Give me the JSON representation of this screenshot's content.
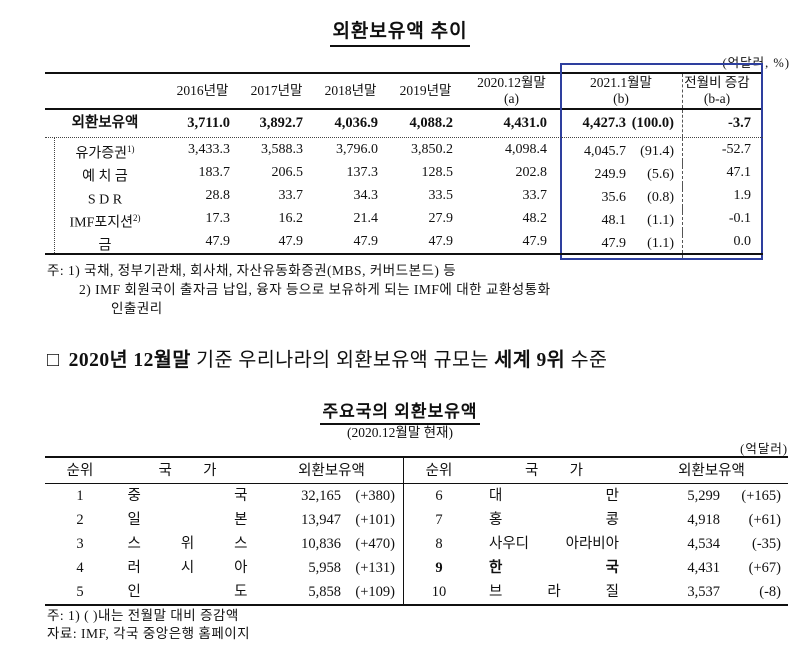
{
  "colors": {
    "highlight_box_border": "#2e3f9e",
    "text": "#101010"
  },
  "table1": {
    "title": "외환보유액 추이",
    "unit_note": "(억달러, %)",
    "year_headers": [
      "2016년말",
      "2017년말",
      "2018년말",
      "2019년말"
    ],
    "col_a": {
      "line1": "2020.12월말",
      "line2": "(a)"
    },
    "col_b": {
      "line1": "2021.1월말",
      "line2": "(b)"
    },
    "col_diff": {
      "line1": "전월비 증감",
      "line2": "(b-a)"
    },
    "total_row": {
      "label": "외환보유액",
      "values": [
        "3,711.0",
        "3,892.7",
        "4,036.9",
        "4,088.2",
        "4,431.0"
      ],
      "b_value": "4,427.3",
      "b_share": "(100.0)",
      "diff": "-3.7"
    },
    "rows": [
      {
        "label": "유가증권",
        "sup": "1)",
        "values": [
          "3,433.3",
          "3,588.3",
          "3,796.0",
          "3,850.2",
          "4,098.4"
        ],
        "b_value": "4,045.7",
        "b_share": "(91.4)",
        "diff": "-52.7"
      },
      {
        "label": "예 치 금",
        "sup": "",
        "values": [
          "183.7",
          "206.5",
          "137.3",
          "128.5",
          "202.8"
        ],
        "b_value": "249.9",
        "b_share": "(5.6)",
        "diff": "47.1"
      },
      {
        "label": "S D R",
        "sup": "",
        "values": [
          "28.8",
          "33.7",
          "34.3",
          "33.5",
          "33.7"
        ],
        "b_value": "35.6",
        "b_share": "(0.8)",
        "diff": "1.9"
      },
      {
        "label": "IMF포지션",
        "sup": "2)",
        "values": [
          "17.3",
          "16.2",
          "21.4",
          "27.9",
          "48.2"
        ],
        "b_value": "48.1",
        "b_share": "(1.1)",
        "diff": "-0.1"
      },
      {
        "label": "금",
        "sup": "",
        "values": [
          "47.9",
          "47.9",
          "47.9",
          "47.9",
          "47.9"
        ],
        "b_value": "47.9",
        "b_share": "(1.1)",
        "diff": "0.0"
      }
    ],
    "notes": [
      "주: 1) 국채, 정부기관채, 회사채, 자산유동화증권(MBS, 커버드본드) 등",
      "2) IMF 회원국이 출자금 납입, 융자 등으로 보유하게 되는 IMF에 대한 교환성통화",
      "인출권리"
    ]
  },
  "statement": {
    "bullet": "□",
    "seg_bold1": "2020년 12월말",
    "seg_reg1": " 기준 우리나라의 외환보유액 규모는 ",
    "seg_bold2": "세계 9위",
    "seg_reg2": " 수준"
  },
  "table2": {
    "title": "주요국의 외환보유액",
    "subtitle": "(2020.12월말 현재)",
    "unit_note": "(억달러)",
    "headers": {
      "rank": "순위",
      "country": "국 가",
      "reserves": "외환보유액"
    },
    "left_rows": [
      {
        "rank": "1",
        "country": "중 국",
        "value": "32,165",
        "change": "(+380)"
      },
      {
        "rank": "2",
        "country": "일 본",
        "value": "13,947",
        "change": "(+101)"
      },
      {
        "rank": "3",
        "country": "스 위 스",
        "value": "10,836",
        "change": "(+470)"
      },
      {
        "rank": "4",
        "country": "러 시 아",
        "value": "5,958",
        "change": "(+131)"
      },
      {
        "rank": "5",
        "country": "인 도",
        "value": "5,858",
        "change": "(+109)"
      }
    ],
    "right_rows": [
      {
        "rank": "6",
        "country": "대 만",
        "value": "5,299",
        "change": "(+165)"
      },
      {
        "rank": "7",
        "country": "홍 콩",
        "value": "4,918",
        "change": "(+61)"
      },
      {
        "rank": "8",
        "country": "사우디 아라비아",
        "value": "4,534",
        "change": "(-35)"
      },
      {
        "rank": "9",
        "country": "한 국",
        "value": "4,431",
        "change": "(+67)"
      },
      {
        "rank": "10",
        "country": "브 라 질",
        "value": "3,537",
        "change": "(-8)"
      }
    ],
    "notes": [
      "주: 1) (  )내는 전월말 대비 증감액",
      "자료: IMF, 각국 중앙은행 홈페이지"
    ]
  }
}
